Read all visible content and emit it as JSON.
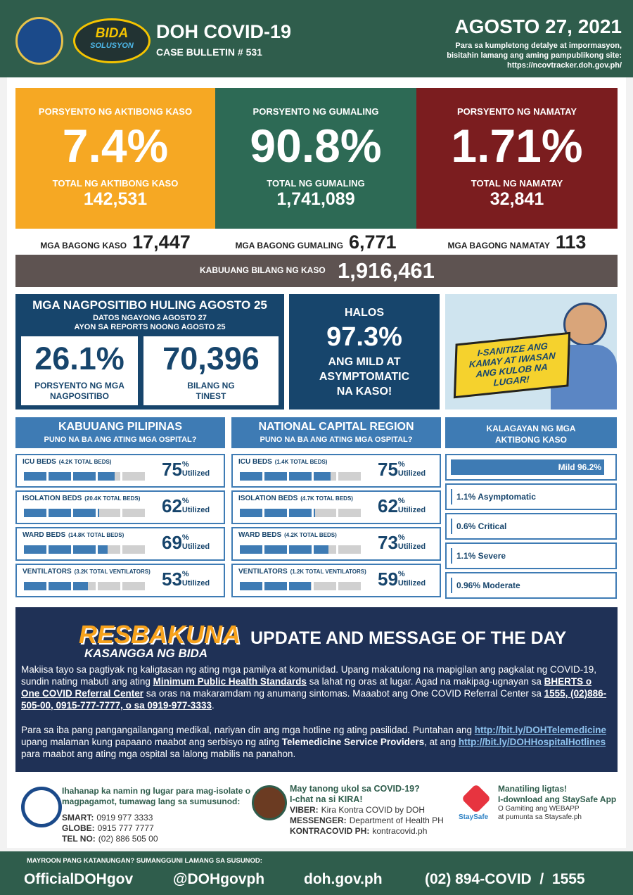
{
  "header": {
    "logo_text": [
      "BIDA",
      "SOLUSYON"
    ],
    "title": "DOH COVID-19",
    "subtitle": "CASE BULLETIN # 531",
    "date": "AGOSTO 27, 2021",
    "note": [
      "Para sa kumpletong detalye at impormasyon,",
      "bisitahin lamang ang aming pampublikong site:"
    ],
    "url": "https://ncovtracker.doh.gov.ph/"
  },
  "summary": [
    {
      "label": "PORSYENTO NG AKTIBONG KASO",
      "percent": "7.4%",
      "total_label": "TOTAL NG AKTIBONG KASO",
      "total": "142,531",
      "new_label": "MGA BAGONG KASO",
      "new": "17,447",
      "color": "#f6a823"
    },
    {
      "label": "PORSYENTO NG GUMALING",
      "percent": "90.8%",
      "total_label": "TOTAL NG GUMALING",
      "total": "1,741,089",
      "new_label": "MGA BAGONG GUMALING",
      "new": "6,771",
      "color": "#2d6a55"
    },
    {
      "label": "PORSYENTO NG NAMATAY",
      "percent": "1.71%",
      "total_label": "TOTAL NG NAMATAY",
      "total": "32,841",
      "new_label": "MGA BAGONG NAMATAY",
      "new": "113",
      "color": "#7b1d1f"
    }
  ],
  "total": {
    "label": "KABUUANG BILANG NG KASO",
    "value": "1,916,461"
  },
  "positivity": {
    "title": "MGA NAGPOSITIBO HULING AGOSTO 25",
    "subtitle": [
      "DATOS NGAYONG AGOSTO 27",
      "AYON SA REPORTS NOONG AGOSTO 25"
    ],
    "rate": "26.1%",
    "rate_label": [
      "PORSYENTO NG MGA",
      "NAGPOSITIBO"
    ],
    "tested": "70,396",
    "tested_label": [
      "BILANG NG",
      "TINEST"
    ]
  },
  "mild": {
    "lead": "HALOS",
    "value": "97.3%",
    "text": [
      "ANG MILD AT",
      "ASYMPTOMATIC",
      "NA KASO!"
    ]
  },
  "poster": [
    "I-SANITIZE ANG",
    "KAMAY AT IWASAN",
    "ANG KULOB NA LUGAR!"
  ],
  "hospitals": {
    "unit": "%",
    "utilized": "Utilized",
    "regions": [
      {
        "title": "KABUUANG PILIPINAS",
        "subtitle": "PUNO NA BA ANG ATING MGA OSPITAL?",
        "items": [
          {
            "label": "ICU BEDS",
            "note": "(4.2K TOTAL BEDS)",
            "value": 75
          },
          {
            "label": "ISOLATION BEDS",
            "note": "(20.4K TOTAL BEDS)",
            "value": 62
          },
          {
            "label": "WARD BEDS",
            "note": "(14.8K TOTAL BEDS)",
            "value": 69
          },
          {
            "label": "VENTILATORS",
            "note": "(3.2K TOTAL VENTILATORS)",
            "value": 53
          }
        ]
      },
      {
        "title": "NATIONAL CAPITAL REGION",
        "subtitle": "PUNO NA BA ANG ATING MGA OSPITAL?",
        "items": [
          {
            "label": "ICU BEDS",
            "note": "(1.4K TOTAL BEDS)",
            "value": 75
          },
          {
            "label": "ISOLATION BEDS",
            "note": "(4.7K TOTAL BEDS)",
            "value": 62
          },
          {
            "label": "WARD BEDS",
            "note": "(4.2K TOTAL BEDS)",
            "value": 73
          },
          {
            "label": "VENTILATORS",
            "note": "(1.2K TOTAL VENTILATORS)",
            "value": 59
          }
        ]
      }
    ]
  },
  "status": {
    "title": [
      "KALAGAYAN NG MGA",
      "AKTIBONG KASO"
    ],
    "items": [
      "Mild 96.2%",
      "1.1% Asymptomatic",
      "0.6% Critical",
      "1.1% Severe",
      "0.96% Moderate"
    ]
  },
  "update": {
    "logo": [
      "RESBAKUNA",
      "KASANGGA NG BIDA"
    ],
    "title": "UPDATE AND MESSAGE OF THE DAY",
    "paragraphs": [
      [
        {
          "text": "Makiisa tayo sa pagtiyak ng kaligtasan ng ating mga pamilya at komunidad. Upang makatulong na mapigilan ang pagkalat ng COVID-19, sundin nating mabuti ang ating ",
          "style": "plain"
        },
        {
          "text": "Minimum Public Health Standards",
          "style": "bold-underline"
        },
        {
          "text": " sa lahat ng oras at lugar. Agad na makipag-ugnayan sa ",
          "style": "plain"
        },
        {
          "text": "BHERTS o One COVID Referral Center",
          "style": "bold-underline"
        },
        {
          "text": " sa oras na makaramdam ng anumang sintomas. Maaabot ang One COVID Referral Center sa ",
          "style": "plain"
        },
        {
          "text": "1555, (02)886-505-00, 0915-777-7777, o sa 0919-977-3333",
          "style": "bold-underline"
        },
        {
          "text": ".",
          "style": "plain"
        }
      ],
      [
        {
          "text": "Para sa iba pang pangangailangang medikal, nariyan din ang mga hotline ng ating pasilidad. Puntahan ang ",
          "style": "plain"
        },
        {
          "text": "http://bit.ly/DOHTelemedicine",
          "style": "link"
        },
        {
          "text": " upang malaman kung papaano maabot ang serbisyo ng ating ",
          "style": "plain"
        },
        {
          "text": "Telemedicine Service Providers",
          "style": "bold"
        },
        {
          "text": ", at ang ",
          "style": "plain"
        },
        {
          "text": "http://bit.ly/DOHHospitalHotlines",
          "style": "link"
        },
        {
          "text": " para maabot ang ating mga ospital sa lalong mabilis na panahon.",
          "style": "plain"
        }
      ]
    ]
  },
  "contacts": [
    {
      "intro": [
        "Ihahanap ka namin ng lugar para mag-isolate o",
        "magpagamot, tumawag lang sa sumusunod:"
      ],
      "lines": [
        {
          "label": "SMART:",
          "value": "0919 977 3333"
        },
        {
          "label": "GLOBE:",
          "value": "0915 777 7777"
        },
        {
          "label": "TEL NO:",
          "value": "(02) 886 505 00"
        }
      ]
    },
    {
      "intro": [
        "May tanong ukol sa COVID-19?",
        "I-chat na si KIRA!"
      ],
      "lines": [
        {
          "label": "VIBER:",
          "value": "Kira Kontra COVID by DOH"
        },
        {
          "label": "MESSENGER:",
          "value": "Department of Health PH"
        },
        {
          "label": "KONTRACOVID PH:",
          "value": "kontracovid.ph"
        }
      ]
    },
    {
      "logo": "StaySafe",
      "intro": [
        "Manatiling ligtas!",
        "I-download ang StaySafe App"
      ],
      "small": [
        "O Gamiting ang WEBAPP",
        "at pumunta sa Staysafe.ph"
      ]
    }
  ],
  "footer": {
    "label": "MAYROON PANG KATANUNGAN? SUMANGGUNI LAMANG SA SUSUNOD:",
    "items": [
      "OfficialDOHgov",
      "@DOHgovph",
      "doh.gov.ph",
      "(02) 894-COVID  /  1555"
    ]
  }
}
